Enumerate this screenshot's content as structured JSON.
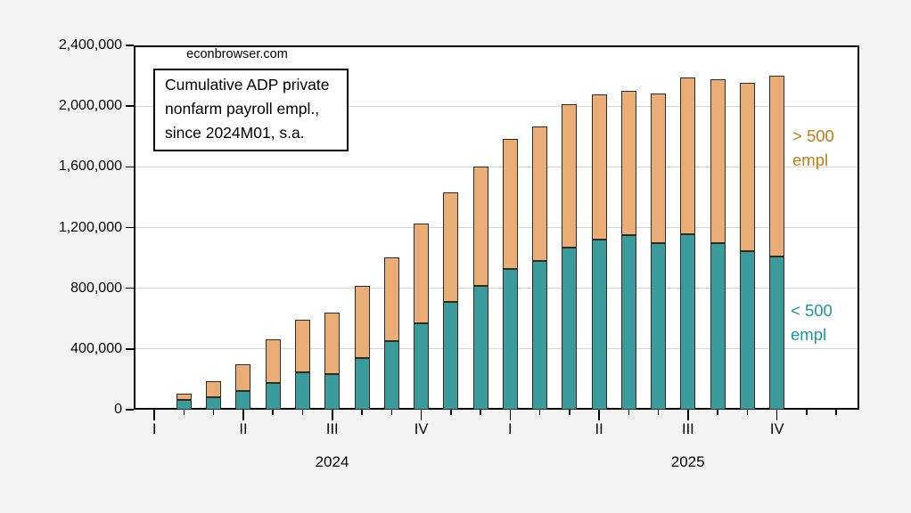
{
  "watermark": "econbrowser.com",
  "annotation": {
    "lines": [
      "Cumulative ADP private",
      "nonfarm payroll empl.,",
      "since 2024M01, s.a."
    ]
  },
  "legend": {
    "over500": {
      "lines": [
        "> 500",
        "empl"
      ],
      "color": "#c07d12"
    },
    "under500": {
      "lines": [
        "< 500",
        "empl"
      ],
      "color": "#1b97a1"
    }
  },
  "colors": {
    "under500_fill": "#3b9c9d",
    "over500_fill": "#eaad75",
    "bar_border": "#2e2a24",
    "gridline": "#d4d4d4",
    "plot_background": "#ffffff",
    "page_background": "#f3f3f3"
  },
  "chart_data": {
    "type": "bar",
    "stacked": true,
    "title": "Cumulative ADP private nonfarm payroll empl., since 2024M01, s.a.",
    "watermark": "econbrowser.com",
    "grid": true,
    "legend_position": "right-inside",
    "ylim": [
      0,
      2400000
    ],
    "ytick_interval": 400000,
    "ytick_labels": [
      "0",
      "400,000",
      "800,000",
      "1,200,000",
      "1,600,000",
      "2,000,000",
      "2,400,000"
    ],
    "categories": [
      "Feb 2024",
      "Mar 2024",
      "Apr 2024",
      "May 2024",
      "Jun 2024",
      "Jul 2024",
      "Aug 2024",
      "Sep 2024",
      "Oct 2024",
      "Nov 2024",
      "Dec 2024",
      "Jan 2025",
      "Feb 2025",
      "Mar 2025",
      "Apr 2025",
      "May 2025",
      "Jun 2025",
      "Jul 2025",
      "Aug 2025",
      "Sep 2025",
      "Oct 2025"
    ],
    "series": [
      {
        "name": "< 500 empl",
        "color": "#3b9c9d",
        "values": [
          62000,
          81000,
          123000,
          175000,
          247000,
          235000,
          343000,
          450000,
          570000,
          709000,
          815000,
          926000,
          977000,
          1067000,
          1118000,
          1148000,
          1099000,
          1157000,
          1099000,
          1042000,
          1010000
        ]
      },
      {
        "name": "> 500 empl",
        "color": "#eaad75",
        "values": [
          42000,
          105000,
          175000,
          287000,
          346000,
          403000,
          472000,
          554000,
          656000,
          721000,
          789000,
          860000,
          891000,
          948000,
          958000,
          955000,
          986000,
          1031000,
          1079000,
          1114000,
          1189000
        ]
      }
    ],
    "xaxis": {
      "month_ticks_total": 24,
      "first_month": "Jan 2024",
      "quarter_labels": [
        "I",
        "II",
        "III",
        "IV",
        "I",
        "II",
        "III",
        "IV"
      ],
      "year_labels": [
        "2024",
        "2025"
      ]
    }
  }
}
